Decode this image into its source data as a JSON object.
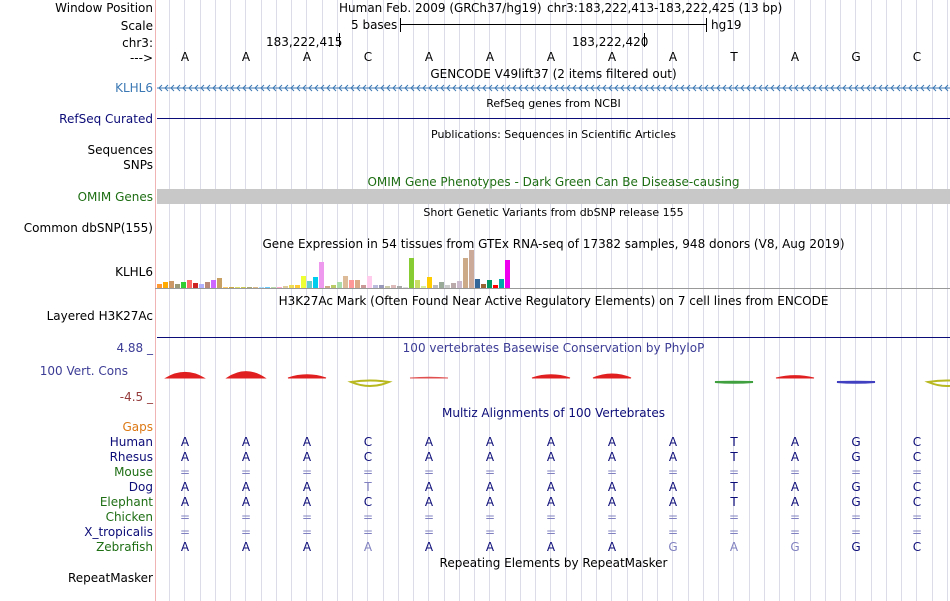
{
  "header": {
    "window_position_label": "Window Position",
    "scale_label": "Scale",
    "chrom_label": "chr3:",
    "strand_label": "--->",
    "assembly_title": "Human Feb. 2009 (GRCh37/hg19)",
    "position": "chr3:183,222,413-183,222,425 (13 bp)",
    "scale_text": "5 bases",
    "db": "hg19",
    "coord_1": "183,222,415",
    "coord_2": "183,222,420"
  },
  "bases": [
    "A",
    "A",
    "A",
    "C",
    "A",
    "A",
    "A",
    "A",
    "A",
    "T",
    "A",
    "G",
    "C"
  ],
  "tracks": {
    "gencode": {
      "title": "GENCODE V49lift37 (2 items filtered out)",
      "label": "KLHL6",
      "color": "#3c78b4"
    },
    "refseq": {
      "title": "RefSeq genes from NCBI",
      "label": "RefSeq Curated",
      "color": "#0c0c78"
    },
    "publications": {
      "title": "Publications: Sequences in Scientific Articles",
      "label_1": "Sequences",
      "label_2": "SNPs"
    },
    "omim": {
      "title": "OMIM Gene Phenotypes - Dark Green Can Be Disease-causing",
      "label": "OMIM Genes",
      "color": "#1e6e14"
    },
    "dbsnp": {
      "title": "Short Genetic Variants from dbSNP release 155",
      "label": "Common dbSNP(155)"
    },
    "gtex": {
      "title": "Gene Expression in 54 tissues from GTEx RNA-seq of 17382 samples, 948 donors (V8, Aug 2019)",
      "label": "KLHL6"
    },
    "h3k27ac": {
      "title": "H3K27Ac Mark (Often Found Near Active Regulatory Elements) on 7 cell lines from ENCODE",
      "label": "Layered H3K27Ac"
    },
    "cons": {
      "title": "100 vertebrates Basewise Conservation by PhyloP",
      "label": "100 Vert. Cons",
      "max": "4.88 _",
      "min": "-4.5 _",
      "color": "#3c3c96"
    },
    "multiz": {
      "title": "Multiz Alignments of 100 Vertebrates",
      "color": "#0c0c78"
    },
    "repeatmasker": {
      "title": "Repeating Elements by RepeatMasker",
      "label": "RepeatMasker"
    }
  },
  "gtex_bars": [
    {
      "v": 4,
      "c": "#ff9933"
    },
    {
      "v": 6,
      "c": "#ffaa00"
    },
    {
      "v": 7,
      "c": "#cc9966"
    },
    {
      "v": 4,
      "c": "#999977"
    },
    {
      "v": 6,
      "c": "#33cc33"
    },
    {
      "v": 8,
      "c": "#ff6666"
    },
    {
      "v": 5,
      "c": "#cc2222"
    },
    {
      "v": 4,
      "c": "#b0b0ff"
    },
    {
      "v": 6,
      "c": "#bb8877"
    },
    {
      "v": 8,
      "c": "#cc66ff"
    },
    {
      "v": 10,
      "c": "#c8a064"
    },
    {
      "v": 1,
      "c": "#ffcc66"
    },
    {
      "v": 1,
      "c": "#ccaa44"
    },
    {
      "v": 1,
      "c": "#dddd66"
    },
    {
      "v": 1,
      "c": "#cccc55"
    },
    {
      "v": 1,
      "c": "#aaaa77"
    },
    {
      "v": 1,
      "c": "#ddbb88"
    },
    {
      "v": 1,
      "c": "#aaddff"
    },
    {
      "v": 1,
      "c": "#66ccff"
    },
    {
      "v": 1,
      "c": "#bbddaa"
    },
    {
      "v": 1,
      "c": "#ffaacc"
    },
    {
      "v": 2,
      "c": "#ddcc99"
    },
    {
      "v": 3,
      "c": "#eedd55"
    },
    {
      "v": 3,
      "c": "#ffcc33"
    },
    {
      "v": 12,
      "c": "#eeff33"
    },
    {
      "v": 7,
      "c": "#66cccc"
    },
    {
      "v": 11,
      "c": "#00ccee"
    },
    {
      "v": 26,
      "c": "#ee99ee"
    },
    {
      "v": 2,
      "c": "#ccaa88"
    },
    {
      "v": 3,
      "c": "#bbcc66"
    },
    {
      "v": 6,
      "c": "#aaddaa"
    },
    {
      "v": 12,
      "c": "#ddbb99"
    },
    {
      "v": 8,
      "c": "#ff9999"
    },
    {
      "v": 8,
      "c": "#ddaa88"
    },
    {
      "v": 3,
      "c": "#cc9999"
    },
    {
      "v": 12,
      "c": "#ffccee"
    },
    {
      "v": 3,
      "c": "#bbbbdd"
    },
    {
      "v": 3,
      "c": "#9999bb"
    },
    {
      "v": 2,
      "c": "#ccccaa"
    },
    {
      "v": 3,
      "c": "#ddbbbb"
    },
    {
      "v": 2,
      "c": "#aaaaaa"
    },
    {
      "v": 1,
      "c": "#dddddd"
    },
    {
      "v": 30,
      "c": "#88cc33"
    },
    {
      "v": 8,
      "c": "#ccdd66"
    },
    {
      "v": 2,
      "c": "#ddee99"
    },
    {
      "v": 11,
      "c": "#ffcc00"
    },
    {
      "v": 3,
      "c": "#bbbbbb"
    },
    {
      "v": 6,
      "c": "#99aa99"
    },
    {
      "v": 3,
      "c": "#cccccc"
    },
    {
      "v": 5,
      "c": "#bbaaaa"
    },
    {
      "v": 7,
      "c": "#ccbbcc"
    },
    {
      "v": 30,
      "c": "#ccaa88"
    },
    {
      "v": 38,
      "c": "#ccaa99"
    },
    {
      "v": 9,
      "c": "#336699"
    },
    {
      "v": 4,
      "c": "#996633"
    },
    {
      "v": 8,
      "c": "#009966"
    },
    {
      "v": 3,
      "c": "#ff0000"
    },
    {
      "v": 9,
      "c": "#00aaaa"
    },
    {
      "v": 28,
      "c": "#ee00ee"
    }
  ],
  "conservation": [
    {
      "h": 7,
      "c": "#e02020",
      "neg": false
    },
    {
      "h": 8,
      "c": "#e02020",
      "neg": false
    },
    {
      "h": 4,
      "c": "#e02020",
      "neg": false
    },
    {
      "h": 5,
      "c": "#b8b820",
      "neg": true
    },
    {
      "h": 1,
      "c": "#e05050",
      "neg": false
    },
    {
      "h": 0,
      "c": "#ffffff",
      "neg": false
    },
    {
      "h": 4,
      "c": "#e02020",
      "neg": false
    },
    {
      "h": 5,
      "c": "#e02020",
      "neg": false
    },
    {
      "h": 0,
      "c": "#ffffff",
      "neg": false
    },
    {
      "h": 1,
      "c": "#40a040",
      "neg": true
    },
    {
      "h": 3,
      "c": "#e02020",
      "neg": false
    },
    {
      "h": 1,
      "c": "#4040c0",
      "neg": true
    },
    {
      "h": 5,
      "c": "#b8b820",
      "neg": true
    }
  ],
  "species": [
    {
      "name": "Human",
      "color": "#0c0c78",
      "bases": [
        "A",
        "A",
        "A",
        "C",
        "A",
        "A",
        "A",
        "A",
        "A",
        "T",
        "A",
        "G",
        "C"
      ]
    },
    {
      "name": "Rhesus",
      "color": "#0c0c78",
      "bases": [
        "A",
        "A",
        "A",
        "C",
        "A",
        "A",
        "A",
        "A",
        "A",
        "T",
        "A",
        "G",
        "C"
      ]
    },
    {
      "name": "Mouse",
      "color": "#1e6e14",
      "bases": [
        "=",
        "=",
        "=",
        "=",
        "=",
        "=",
        "=",
        "=",
        "=",
        "=",
        "=",
        "=",
        "="
      ]
    },
    {
      "name": "Dog",
      "color": "#0c0c78",
      "bases": [
        "A",
        "A",
        "A",
        "T",
        "A",
        "A",
        "A",
        "A",
        "A",
        "T",
        "A",
        "G",
        "C"
      ]
    },
    {
      "name": "Elephant",
      "color": "#1e6e14",
      "bases": [
        "A",
        "A",
        "A",
        "C",
        "A",
        "A",
        "A",
        "A",
        "A",
        "T",
        "A",
        "G",
        "C"
      ]
    },
    {
      "name": "Chicken",
      "color": "#1e6e14",
      "bases": [
        "=",
        "=",
        "=",
        "=",
        "=",
        "=",
        "=",
        "=",
        "=",
        "=",
        "=",
        "=",
        "="
      ]
    },
    {
      "name": "X_tropicalis",
      "color": "#0c0c78",
      "bases": [
        "=",
        "=",
        "=",
        "=",
        "=",
        "=",
        "=",
        "=",
        "=",
        "=",
        "=",
        "=",
        "="
      ]
    },
    {
      "name": "Zebrafish",
      "color": "#1e6e14",
      "bases": [
        "A",
        "A",
        "A",
        "A",
        "A",
        "A",
        "A",
        "A",
        "G",
        "A",
        "G",
        "G",
        "C"
      ]
    }
  ],
  "gaps_label": "Gaps",
  "colors": {
    "gaps": "#dc7814",
    "base_match": "#0c0c78",
    "base_mismatch": "#8080c0",
    "dash": "#8080c0"
  }
}
